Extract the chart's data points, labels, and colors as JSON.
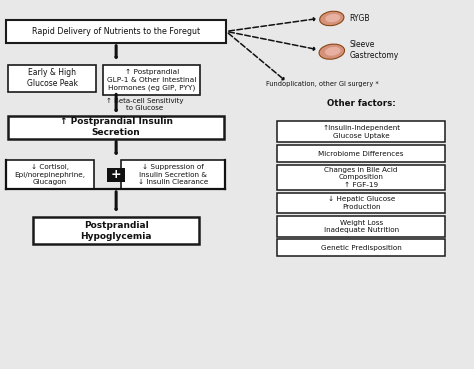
{
  "bg_color": "#e8e8e8",
  "box_color": "#ffffff",
  "box_edge": "#1a1a1a",
  "arrow_color": "#111111",
  "text_color": "#111111",
  "main_box": "Rapid Delivery of Nutrients to the Foregut",
  "box1": "Early & High\nGlucose Peak",
  "box2": "↑ Postprandial\nGLP-1 & Other Intestinal\nHormones (eg GIP, PYY)",
  "beta_label": "↑ Beta-cell Sensitivity\nto Glucose",
  "box3": "↑ Postprandial Insulin\nSecretion",
  "box4": "↓ Cortisol,\nEpi/norepinephrine,\nGlucagon",
  "box5": "↓ Suppression of\nInsulin Secretion &\n↓ Insulin Clearance",
  "box_final": "Postprandial\nHypoglycemia",
  "rygb_label": "RYGB",
  "sleeve_label": "Sleeve\nGastrectomy",
  "fundo_label": "Fundoplication, other GI surgery *",
  "other_factors_title": "Other factors:",
  "right_boxes": [
    "↑Insulin-Independent\nGlucose Uptake",
    "Microbiome Differences",
    "Changes in Bile Acid\nComposition\n↑ FGF-19",
    "↓ Hepatic Glucose\nProduction",
    "Weight Loss\nInadequate Nutrition",
    "Genetic Predisposition"
  ],
  "xlim": [
    0,
    10
  ],
  "ylim": [
    0,
    10
  ]
}
